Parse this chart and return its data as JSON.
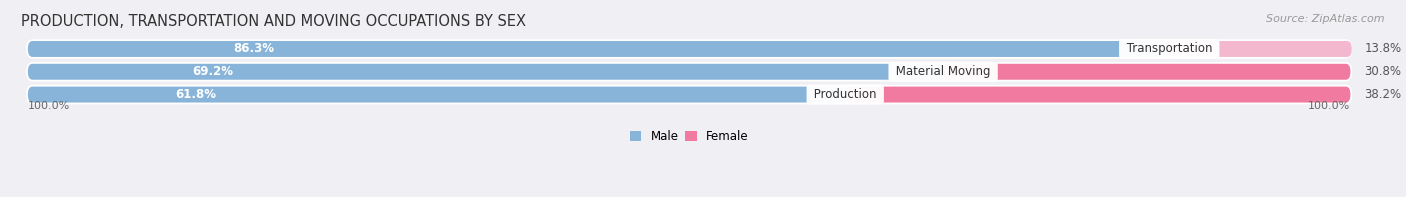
{
  "title": "PRODUCTION, TRANSPORTATION AND MOVING OCCUPATIONS BY SEX",
  "source": "Source: ZipAtlas.com",
  "categories": [
    "Transportation",
    "Material Moving",
    "Production"
  ],
  "male_values": [
    86.3,
    69.2,
    61.8
  ],
  "female_values": [
    13.8,
    30.8,
    38.2
  ],
  "male_color": "#88b4d9",
  "female_color": "#f07aa0",
  "female_color_transport": "#f4aec8",
  "bg_row_color": "#e8e8ec",
  "title_fontsize": 10.5,
  "source_fontsize": 8,
  "bar_label_fontsize": 8.5,
  "category_label_fontsize": 8.5,
  "axis_label_fontsize": 8,
  "left_label": "100.0%",
  "right_label": "100.0%",
  "legend_male": "Male",
  "legend_female": "Female",
  "total_width": 100.0,
  "bar_height": 0.7
}
